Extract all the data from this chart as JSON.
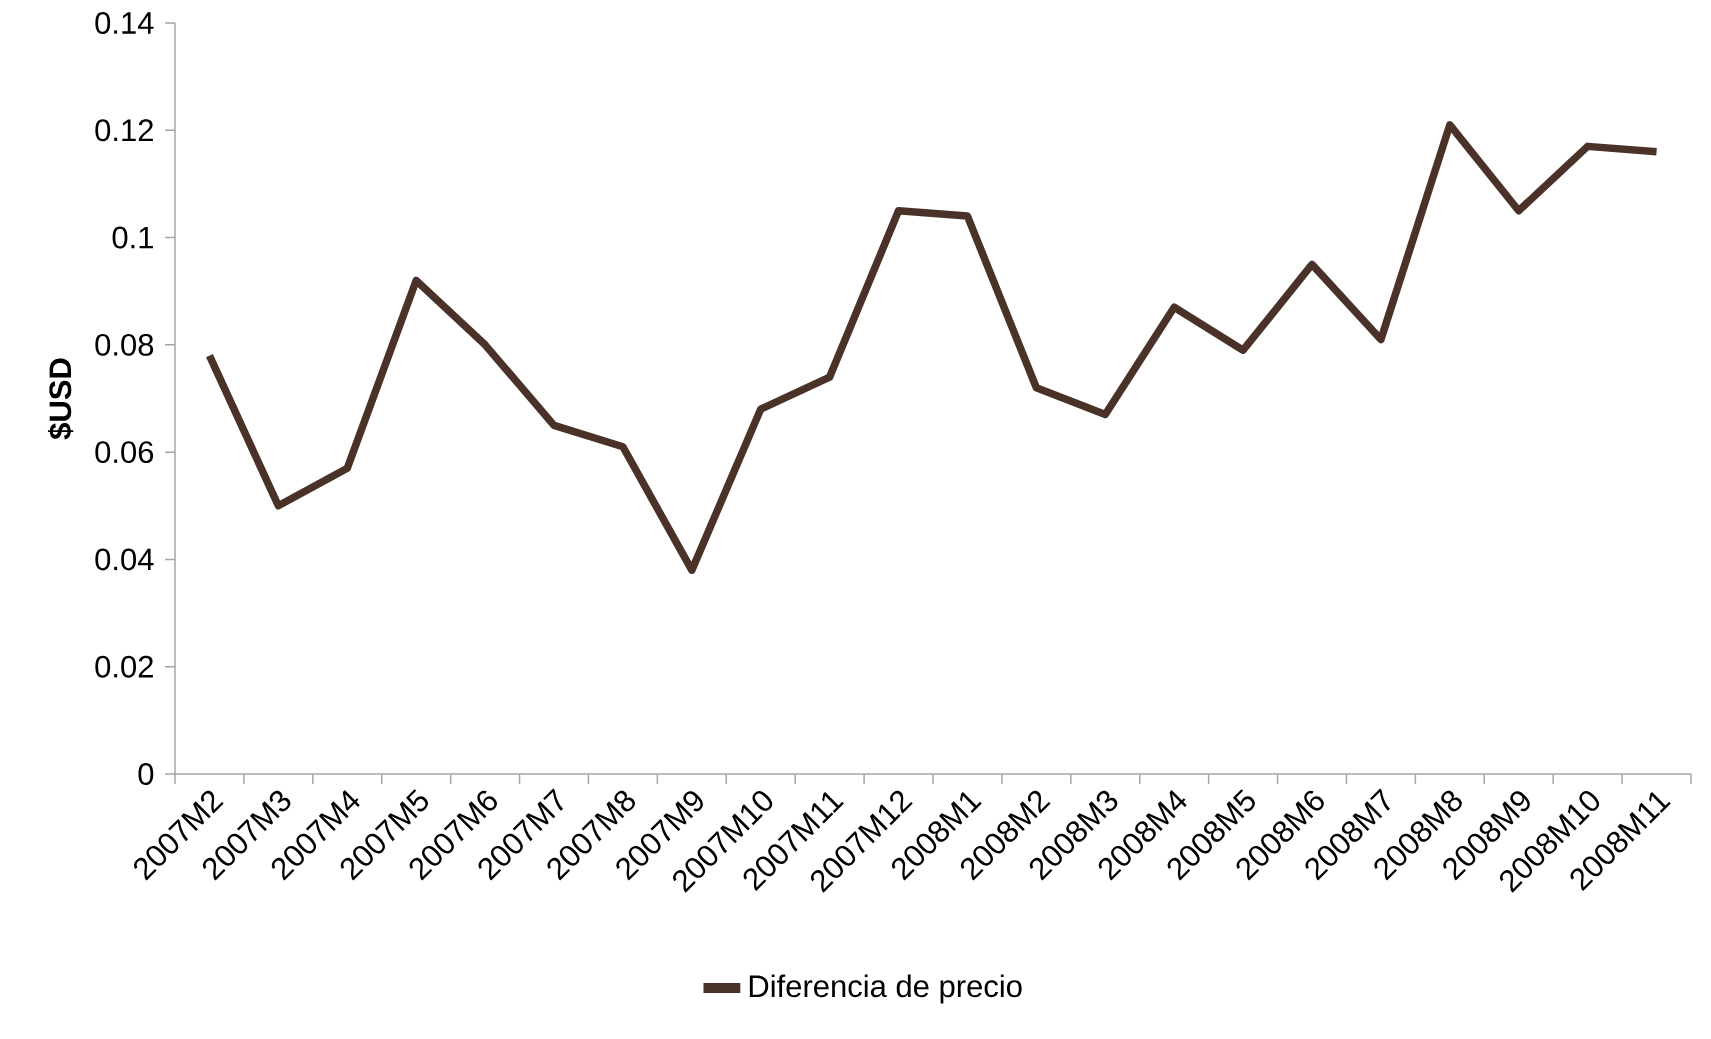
{
  "chart_data": {
    "type": "line",
    "ylabel": "$USD",
    "categories": [
      "2007M2",
      "2007M3",
      "2007M4",
      "2007M5",
      "2007M6",
      "2007M7",
      "2007M8",
      "2007M9",
      "2007M10",
      "2007M11",
      "2007M12",
      "2008M1",
      "2008M2",
      "2008M3",
      "2008M4",
      "2008M5",
      "2008M6",
      "2008M7",
      "2008M8",
      "2008M9",
      "2008M10",
      "2008M11"
    ],
    "series": [
      {
        "name": "Diferencia de precio",
        "color": "#4a3228",
        "values": [
          0.078,
          0.05,
          0.057,
          0.092,
          0.08,
          0.065,
          0.061,
          0.038,
          0.068,
          0.074,
          0.105,
          0.104,
          0.072,
          0.067,
          0.087,
          0.079,
          0.095,
          0.081,
          0.121,
          0.105,
          0.117,
          0.116
        ]
      }
    ],
    "ylim": [
      0,
      0.14
    ],
    "yticks": [
      0,
      0.02,
      0.04,
      0.06,
      0.08,
      0.1,
      0.12,
      0.14
    ],
    "legend": "bottom",
    "line_style": "solid"
  }
}
